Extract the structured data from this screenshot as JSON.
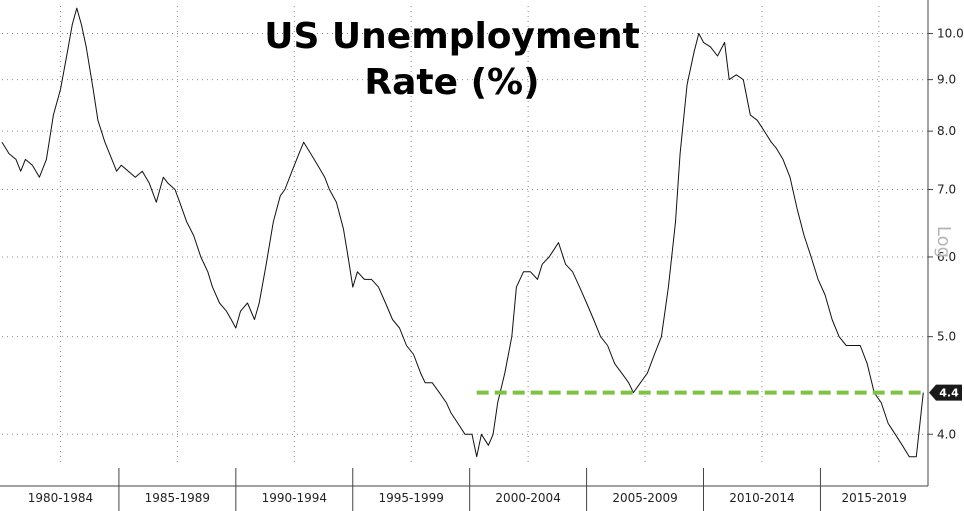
{
  "chart_data": {
    "type": "line",
    "title_lines": [
      "US Unemployment",
      "Rate (%)"
    ],
    "scale_label": "Log",
    "y_scale": "log",
    "ylim": [
      3.72,
      10.65
    ],
    "y_ticks": [
      {
        "value": 4.0,
        "label": "4.0"
      },
      {
        "value": 5.0,
        "label": "5.0"
      },
      {
        "value": 6.0,
        "label": "6.0"
      },
      {
        "value": 7.0,
        "label": "7.0"
      },
      {
        "value": 8.0,
        "label": "8.0"
      },
      {
        "value": 9.0,
        "label": "9.0"
      },
      {
        "value": 10.0,
        "label": "10.0"
      }
    ],
    "xlim": [
      1980.0,
      2019.6
    ],
    "x_groups": [
      {
        "label": "1980-1984",
        "start": 1980,
        "end": 1985
      },
      {
        "label": "1985-1989",
        "start": 1985,
        "end": 1990
      },
      {
        "label": "1990-1994",
        "start": 1990,
        "end": 1995
      },
      {
        "label": "1995-1999",
        "start": 1995,
        "end": 2000
      },
      {
        "label": "2000-2004",
        "start": 2000,
        "end": 2005
      },
      {
        "label": "2005-2009",
        "start": 2005,
        "end": 2010
      },
      {
        "label": "2010-2014",
        "start": 2010,
        "end": 2015
      },
      {
        "label": "2015-2019",
        "start": 2015,
        "end": 2020
      }
    ],
    "last_value_label": "4.4",
    "last_value": 4.4,
    "reference_line": {
      "value": 4.4,
      "x_start": 2000.3,
      "x_end": 2019.4,
      "color": "#7dc242"
    },
    "series": [
      {
        "color": "#111111",
        "points": [
          [
            1980.0,
            7.8
          ],
          [
            1980.3,
            7.6
          ],
          [
            1980.6,
            7.5
          ],
          [
            1980.8,
            7.3
          ],
          [
            1981.0,
            7.5
          ],
          [
            1981.3,
            7.4
          ],
          [
            1981.6,
            7.2
          ],
          [
            1981.9,
            7.5
          ],
          [
            1982.2,
            8.3
          ],
          [
            1982.5,
            8.8
          ],
          [
            1982.8,
            9.6
          ],
          [
            1983.0,
            10.2
          ],
          [
            1983.2,
            10.6
          ],
          [
            1983.4,
            10.2
          ],
          [
            1983.6,
            9.7
          ],
          [
            1983.9,
            8.8
          ],
          [
            1984.1,
            8.2
          ],
          [
            1984.4,
            7.8
          ],
          [
            1984.7,
            7.5
          ],
          [
            1984.9,
            7.3
          ],
          [
            1985.1,
            7.4
          ],
          [
            1985.4,
            7.3
          ],
          [
            1985.7,
            7.2
          ],
          [
            1986.0,
            7.3
          ],
          [
            1986.3,
            7.1
          ],
          [
            1986.6,
            6.8
          ],
          [
            1986.9,
            7.2
          ],
          [
            1987.1,
            7.1
          ],
          [
            1987.4,
            7.0
          ],
          [
            1987.6,
            6.8
          ],
          [
            1987.9,
            6.5
          ],
          [
            1988.2,
            6.3
          ],
          [
            1988.5,
            6.0
          ],
          [
            1988.8,
            5.8
          ],
          [
            1989.0,
            5.6
          ],
          [
            1989.3,
            5.4
          ],
          [
            1989.6,
            5.3
          ],
          [
            1989.8,
            5.2
          ],
          [
            1990.0,
            5.1
          ],
          [
            1990.2,
            5.3
          ],
          [
            1990.5,
            5.4
          ],
          [
            1990.8,
            5.2
          ],
          [
            1991.0,
            5.4
          ],
          [
            1991.3,
            5.9
          ],
          [
            1991.6,
            6.5
          ],
          [
            1991.9,
            6.9
          ],
          [
            1992.1,
            7.0
          ],
          [
            1992.4,
            7.3
          ],
          [
            1992.7,
            7.6
          ],
          [
            1992.9,
            7.8
          ],
          [
            1993.2,
            7.6
          ],
          [
            1993.5,
            7.4
          ],
          [
            1993.8,
            7.2
          ],
          [
            1994.0,
            7.0
          ],
          [
            1994.3,
            6.8
          ],
          [
            1994.6,
            6.4
          ],
          [
            1994.8,
            6.0
          ],
          [
            1995.0,
            5.6
          ],
          [
            1995.2,
            5.8
          ],
          [
            1995.5,
            5.7
          ],
          [
            1995.8,
            5.7
          ],
          [
            1996.1,
            5.6
          ],
          [
            1996.4,
            5.4
          ],
          [
            1996.7,
            5.2
          ],
          [
            1997.0,
            5.1
          ],
          [
            1997.3,
            4.9
          ],
          [
            1997.6,
            4.8
          ],
          [
            1997.9,
            4.6
          ],
          [
            1998.1,
            4.5
          ],
          [
            1998.4,
            4.5
          ],
          [
            1998.7,
            4.4
          ],
          [
            1999.0,
            4.3
          ],
          [
            1999.2,
            4.2
          ],
          [
            1999.5,
            4.1
          ],
          [
            1999.8,
            4.0
          ],
          [
            2000.1,
            4.0
          ],
          [
            2000.3,
            3.8
          ],
          [
            2000.5,
            4.0
          ],
          [
            2000.8,
            3.9
          ],
          [
            2001.0,
            4.0
          ],
          [
            2001.2,
            4.3
          ],
          [
            2001.5,
            4.6
          ],
          [
            2001.8,
            5.0
          ],
          [
            2002.0,
            5.6
          ],
          [
            2002.3,
            5.8
          ],
          [
            2002.6,
            5.8
          ],
          [
            2002.9,
            5.7
          ],
          [
            2003.1,
            5.9
          ],
          [
            2003.4,
            6.0
          ],
          [
            2003.6,
            6.1
          ],
          [
            2003.8,
            6.2
          ],
          [
            2004.1,
            5.9
          ],
          [
            2004.4,
            5.8
          ],
          [
            2004.7,
            5.6
          ],
          [
            2005.0,
            5.4
          ],
          [
            2005.3,
            5.2
          ],
          [
            2005.6,
            5.0
          ],
          [
            2005.9,
            4.9
          ],
          [
            2006.2,
            4.7
          ],
          [
            2006.5,
            4.6
          ],
          [
            2006.8,
            4.5
          ],
          [
            2007.0,
            4.4
          ],
          [
            2007.3,
            4.5
          ],
          [
            2007.6,
            4.6
          ],
          [
            2007.9,
            4.8
          ],
          [
            2008.2,
            5.0
          ],
          [
            2008.5,
            5.6
          ],
          [
            2008.8,
            6.5
          ],
          [
            2009.0,
            7.6
          ],
          [
            2009.3,
            8.9
          ],
          [
            2009.6,
            9.6
          ],
          [
            2009.8,
            10.0
          ],
          [
            2010.0,
            9.8
          ],
          [
            2010.3,
            9.7
          ],
          [
            2010.6,
            9.5
          ],
          [
            2010.9,
            9.8
          ],
          [
            2011.1,
            9.0
          ],
          [
            2011.4,
            9.1
          ],
          [
            2011.7,
            9.0
          ],
          [
            2012.0,
            8.3
          ],
          [
            2012.3,
            8.2
          ],
          [
            2012.6,
            8.0
          ],
          [
            2012.9,
            7.8
          ],
          [
            2013.1,
            7.7
          ],
          [
            2013.4,
            7.5
          ],
          [
            2013.7,
            7.2
          ],
          [
            2014.0,
            6.7
          ],
          [
            2014.3,
            6.3
          ],
          [
            2014.6,
            6.0
          ],
          [
            2014.9,
            5.7
          ],
          [
            2015.2,
            5.5
          ],
          [
            2015.5,
            5.2
          ],
          [
            2015.8,
            5.0
          ],
          [
            2016.1,
            4.9
          ],
          [
            2016.4,
            4.9
          ],
          [
            2016.7,
            4.9
          ],
          [
            2017.0,
            4.7
          ],
          [
            2017.3,
            4.4
          ],
          [
            2017.6,
            4.3
          ],
          [
            2017.9,
            4.1
          ],
          [
            2018.2,
            4.0
          ],
          [
            2018.5,
            3.9
          ],
          [
            2018.8,
            3.8
          ],
          [
            2019.1,
            3.8
          ],
          [
            2019.4,
            4.4
          ]
        ]
      }
    ]
  }
}
